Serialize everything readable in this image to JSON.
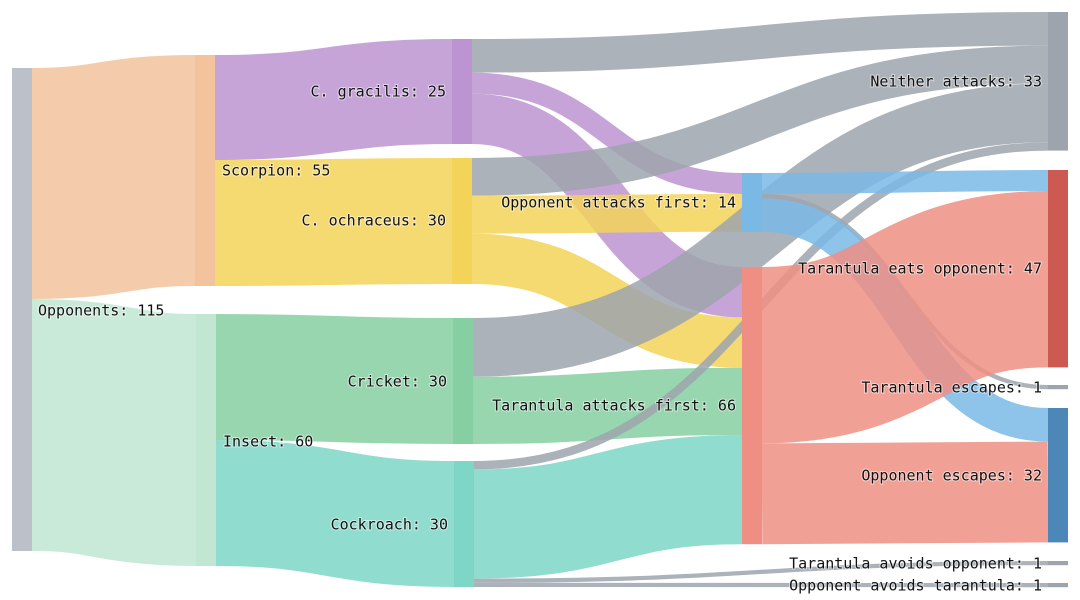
{
  "colors": {
    "opponents": "#bcc1c9",
    "scorpion": "#f2c39c",
    "insect": "#c1e6d2",
    "c_gracilis": "#bc94d1",
    "c_ochraceus": "#f3d458",
    "cricket": "#86cfa2",
    "cockroach": "#7dd6c6",
    "opponent_attacks_first": "#7ab8e6",
    "tarantula_attacks_first": "#ef8f84",
    "neither_attacks": "#9ea4ad",
    "tarantula_eats_opponent": "#cc5a52",
    "tarantula_escapes": "#9ea4ad",
    "opponent_escapes": "#4d87b8",
    "tarantula_avoids_opponent": "#9ea4ad",
    "opponent_avoids_tarantula": "#9ea4ad"
  },
  "chart_data": {
    "type": "sankey",
    "nodes": [
      {
        "id": "opponents",
        "label": "Opponents: 115",
        "value": 115
      },
      {
        "id": "scorpion",
        "label": "Scorpion: 55",
        "value": 55
      },
      {
        "id": "insect",
        "label": "Insect: 60",
        "value": 60
      },
      {
        "id": "c_gracilis",
        "label": "C. gracilis: 25",
        "value": 25
      },
      {
        "id": "c_ochraceus",
        "label": "C. ochraceus: 30",
        "value": 30
      },
      {
        "id": "cricket",
        "label": "Cricket: 30",
        "value": 30
      },
      {
        "id": "cockroach",
        "label": "Cockroach: 30",
        "value": 30
      },
      {
        "id": "opponent_attacks_first",
        "label": "Opponent attacks first: 14",
        "value": 14
      },
      {
        "id": "tarantula_attacks_first",
        "label": "Tarantula attacks first: 66",
        "value": 66
      },
      {
        "id": "neither_attacks",
        "label": "Neither attacks: 33",
        "value": 33
      },
      {
        "id": "tarantula_eats_opponent",
        "label": "Tarantula eats opponent: 47",
        "value": 47
      },
      {
        "id": "tarantula_escapes",
        "label": "Tarantula escapes: 1",
        "value": 1
      },
      {
        "id": "opponent_escapes",
        "label": "Opponent escapes: 32",
        "value": 32
      },
      {
        "id": "tarantula_avoids_opponent",
        "label": "Tarantula avoids opponent: 1",
        "value": 1
      },
      {
        "id": "opponent_avoids_tarantula",
        "label": "Opponent avoids tarantula: 1",
        "value": 1
      }
    ],
    "links": [
      {
        "source": "opponents",
        "target": "scorpion",
        "value": 55
      },
      {
        "source": "opponents",
        "target": "insect",
        "value": 60
      },
      {
        "source": "scorpion",
        "target": "c_gracilis",
        "value": 25
      },
      {
        "source": "scorpion",
        "target": "c_ochraceus",
        "value": 30
      },
      {
        "source": "insect",
        "target": "cricket",
        "value": 30
      },
      {
        "source": "insect",
        "target": "cockroach",
        "value": 30
      },
      {
        "source": "c_gracilis",
        "target": "neither_attacks",
        "value": 8
      },
      {
        "source": "c_gracilis",
        "target": "opponent_attacks_first",
        "value": 5
      },
      {
        "source": "c_gracilis",
        "target": "tarantula_attacks_first",
        "value": 12
      },
      {
        "source": "c_ochraceus",
        "target": "neither_attacks",
        "value": 9
      },
      {
        "source": "c_ochraceus",
        "target": "opponent_attacks_first",
        "value": 9
      },
      {
        "source": "c_ochraceus",
        "target": "tarantula_attacks_first",
        "value": 12
      },
      {
        "source": "cricket",
        "target": "neither_attacks",
        "value": 14
      },
      {
        "source": "cricket",
        "target": "tarantula_attacks_first",
        "value": 16
      },
      {
        "source": "cockroach",
        "target": "neither_attacks",
        "value": 2
      },
      {
        "source": "cockroach",
        "target": "tarantula_attacks_first",
        "value": 26
      },
      {
        "source": "cockroach",
        "target": "tarantula_avoids_opponent",
        "value": 1
      },
      {
        "source": "cockroach",
        "target": "opponent_avoids_tarantula",
        "value": 1
      },
      {
        "source": "opponent_attacks_first",
        "target": "tarantula_eats_opponent",
        "value": 5
      },
      {
        "source": "opponent_attacks_first",
        "target": "tarantula_escapes",
        "value": 1
      },
      {
        "source": "opponent_attacks_first",
        "target": "opponent_escapes",
        "value": 8
      },
      {
        "source": "tarantula_attacks_first",
        "target": "tarantula_eats_opponent",
        "value": 42
      },
      {
        "source": "tarantula_attacks_first",
        "target": "opponent_escapes",
        "value": 24
      }
    ]
  }
}
